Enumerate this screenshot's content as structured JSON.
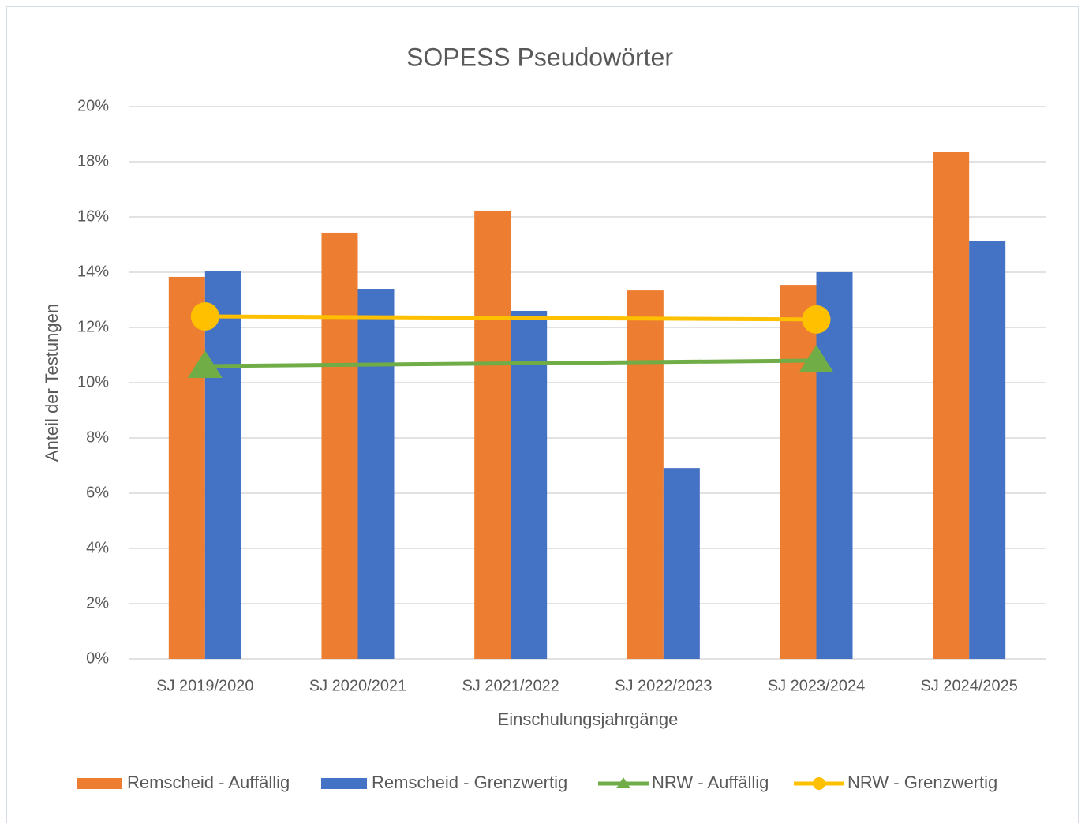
{
  "chart_data": {
    "type": "bar_line",
    "title": "SOPESS Pseudowörter",
    "x_label": "Einschulungsjahrgänge",
    "y_label": "Anteil der Testungen",
    "categories": [
      "SJ 2019/2020",
      "SJ 2020/2021",
      "SJ 2021/2022",
      "SJ 2022/2023",
      "SJ 2023/2024",
      "SJ 2024/2025"
    ],
    "series": [
      {
        "name": "Remscheid - Auffällig",
        "type": "bar",
        "color": "#ed7d31",
        "values": [
          13.83,
          15.43,
          16.23,
          13.34,
          13.54,
          18.37
        ]
      },
      {
        "name": "Remscheid - Grenzwertig",
        "type": "bar",
        "color": "#4472c4",
        "values": [
          14.03,
          13.4,
          12.6,
          6.91,
          14.0,
          15.14
        ]
      },
      {
        "name": "NRW - Auffällig",
        "type": "line",
        "marker": "triangle",
        "color": "#70ad47",
        "values": [
          10.6,
          null,
          null,
          null,
          10.8,
          null
        ]
      },
      {
        "name": "NRW - Grenzwertig",
        "type": "line",
        "marker": "circle",
        "color": "#ffc000",
        "values": [
          12.4,
          null,
          null,
          null,
          12.29,
          null
        ]
      }
    ],
    "connect_gaps": true,
    "ylim": [
      0,
      20
    ],
    "yticks": [
      {
        "value": 0,
        "label": "0%"
      },
      {
        "value": 2,
        "label": "2%"
      },
      {
        "value": 4,
        "label": "4%"
      },
      {
        "value": 6,
        "label": "6%"
      },
      {
        "value": 8,
        "label": "8%"
      },
      {
        "value": 10,
        "label": "10%"
      },
      {
        "value": 12,
        "label": "12%"
      },
      {
        "value": 14,
        "label": "14%"
      },
      {
        "value": 16,
        "label": "16%"
      },
      {
        "value": 18,
        "label": "18%"
      },
      {
        "value": 20,
        "label": "20%"
      }
    ],
    "grid": true,
    "legend": "bottom"
  }
}
